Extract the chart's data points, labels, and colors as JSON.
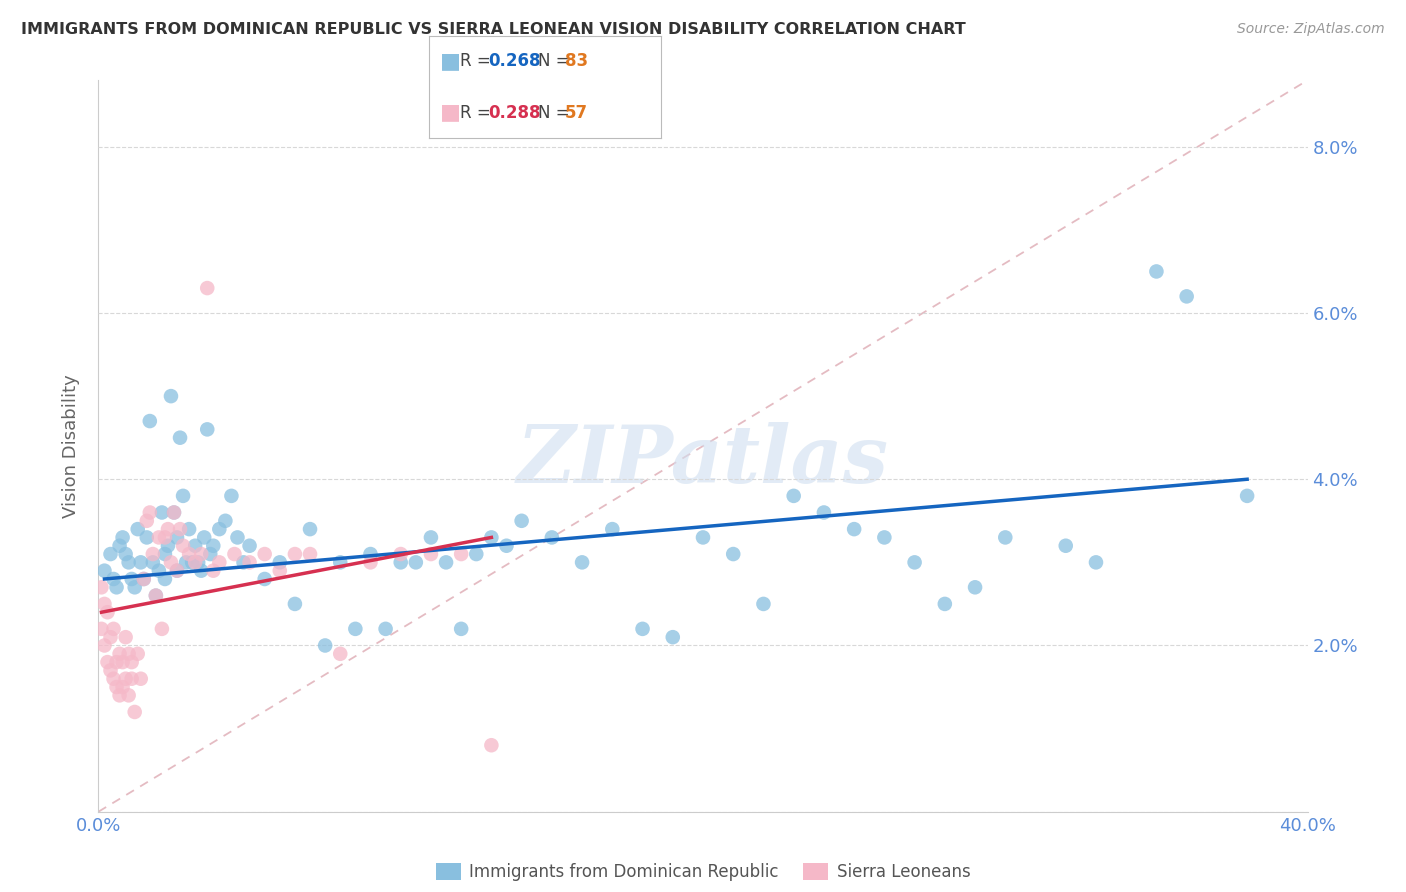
{
  "title": "IMMIGRANTS FROM DOMINICAN REPUBLIC VS SIERRA LEONEAN VISION DISABILITY CORRELATION CHART",
  "source": "Source: ZipAtlas.com",
  "ylabel": "Vision Disability",
  "legend_label_blue": "Immigrants from Dominican Republic",
  "legend_label_pink": "Sierra Leoneans",
  "xlim": [
    0.0,
    0.4
  ],
  "ylim": [
    0.0,
    0.088
  ],
  "ytick_vals": [
    0.0,
    0.02,
    0.04,
    0.06,
    0.08
  ],
  "ytick_labels": [
    "",
    "2.0%",
    "4.0%",
    "6.0%",
    "8.0%"
  ],
  "xtick_vals": [
    0.0,
    0.4
  ],
  "xtick_labels": [
    "0.0%",
    "40.0%"
  ],
  "background_color": "#ffffff",
  "blue_color": "#89bfdf",
  "pink_color": "#f5b8c8",
  "blue_line_color": "#1565c0",
  "pink_line_color": "#d63050",
  "ref_line_color": "#e0b0b8",
  "axis_color": "#5b8dd9",
  "watermark_text": "ZIPatlas",
  "watermark_color": "#d0dff0",
  "grid_color": "#d8d8d8",
  "blue_scatter_x": [
    0.002,
    0.004,
    0.005,
    0.006,
    0.007,
    0.008,
    0.009,
    0.01,
    0.011,
    0.012,
    0.013,
    0.014,
    0.015,
    0.016,
    0.017,
    0.018,
    0.019,
    0.02,
    0.021,
    0.022,
    0.022,
    0.023,
    0.024,
    0.025,
    0.026,
    0.026,
    0.027,
    0.028,
    0.029,
    0.03,
    0.031,
    0.032,
    0.033,
    0.034,
    0.035,
    0.036,
    0.037,
    0.038,
    0.04,
    0.042,
    0.044,
    0.046,
    0.048,
    0.05,
    0.055,
    0.06,
    0.065,
    0.07,
    0.075,
    0.08,
    0.085,
    0.09,
    0.095,
    0.1,
    0.105,
    0.11,
    0.115,
    0.12,
    0.125,
    0.13,
    0.135,
    0.14,
    0.15,
    0.16,
    0.17,
    0.18,
    0.19,
    0.2,
    0.21,
    0.22,
    0.23,
    0.24,
    0.25,
    0.26,
    0.27,
    0.28,
    0.29,
    0.3,
    0.32,
    0.33,
    0.35,
    0.36,
    0.38
  ],
  "blue_scatter_y": [
    0.029,
    0.031,
    0.028,
    0.027,
    0.032,
    0.033,
    0.031,
    0.03,
    0.028,
    0.027,
    0.034,
    0.03,
    0.028,
    0.033,
    0.047,
    0.03,
    0.026,
    0.029,
    0.036,
    0.031,
    0.028,
    0.032,
    0.05,
    0.036,
    0.033,
    0.029,
    0.045,
    0.038,
    0.03,
    0.034,
    0.03,
    0.032,
    0.03,
    0.029,
    0.033,
    0.046,
    0.031,
    0.032,
    0.034,
    0.035,
    0.038,
    0.033,
    0.03,
    0.032,
    0.028,
    0.03,
    0.025,
    0.034,
    0.02,
    0.03,
    0.022,
    0.031,
    0.022,
    0.03,
    0.03,
    0.033,
    0.03,
    0.022,
    0.031,
    0.033,
    0.032,
    0.035,
    0.033,
    0.03,
    0.034,
    0.022,
    0.021,
    0.033,
    0.031,
    0.025,
    0.038,
    0.036,
    0.034,
    0.033,
    0.03,
    0.025,
    0.027,
    0.033,
    0.032,
    0.03,
    0.065,
    0.062,
    0.038
  ],
  "pink_scatter_x": [
    0.001,
    0.001,
    0.002,
    0.002,
    0.003,
    0.003,
    0.004,
    0.004,
    0.005,
    0.005,
    0.006,
    0.006,
    0.007,
    0.007,
    0.008,
    0.008,
    0.009,
    0.009,
    0.01,
    0.01,
    0.011,
    0.011,
    0.012,
    0.013,
    0.014,
    0.015,
    0.016,
    0.017,
    0.018,
    0.019,
    0.02,
    0.021,
    0.022,
    0.023,
    0.024,
    0.025,
    0.026,
    0.027,
    0.028,
    0.03,
    0.032,
    0.034,
    0.036,
    0.038,
    0.04,
    0.045,
    0.05,
    0.055,
    0.06,
    0.065,
    0.07,
    0.08,
    0.09,
    0.1,
    0.11,
    0.12,
    0.13
  ],
  "pink_scatter_y": [
    0.027,
    0.022,
    0.025,
    0.02,
    0.024,
    0.018,
    0.017,
    0.021,
    0.022,
    0.016,
    0.018,
    0.015,
    0.019,
    0.014,
    0.015,
    0.018,
    0.021,
    0.016,
    0.014,
    0.019,
    0.018,
    0.016,
    0.012,
    0.019,
    0.016,
    0.028,
    0.035,
    0.036,
    0.031,
    0.026,
    0.033,
    0.022,
    0.033,
    0.034,
    0.03,
    0.036,
    0.029,
    0.034,
    0.032,
    0.031,
    0.03,
    0.031,
    0.063,
    0.029,
    0.03,
    0.031,
    0.03,
    0.031,
    0.029,
    0.031,
    0.031,
    0.019,
    0.03,
    0.031,
    0.031,
    0.031,
    0.008
  ],
  "blue_trend_x": [
    0.002,
    0.38
  ],
  "blue_trend_y": [
    0.028,
    0.04
  ],
  "pink_trend_x": [
    0.001,
    0.13
  ],
  "pink_trend_y": [
    0.024,
    0.033
  ],
  "ref_line_x": [
    0.0,
    0.4
  ],
  "ref_line_y": [
    0.0,
    0.088
  ]
}
